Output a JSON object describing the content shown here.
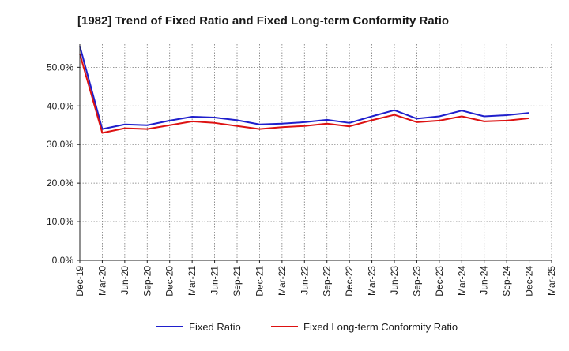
{
  "chart_data": {
    "type": "line",
    "title": "[1982]  Trend of Fixed Ratio and Fixed Long-term Conformity Ratio",
    "xlabel": "",
    "ylabel": "",
    "x": [
      "Dec-19",
      "Mar-20",
      "Jun-20",
      "Sep-20",
      "Dec-20",
      "Mar-21",
      "Jun-21",
      "Sep-21",
      "Dec-21",
      "Mar-22",
      "Jun-22",
      "Sep-22",
      "Dec-22",
      "Mar-23",
      "Jun-23",
      "Sep-23",
      "Dec-23",
      "Mar-24",
      "Jun-24",
      "Sep-24",
      "Dec-24",
      "Mar-25"
    ],
    "y_ticks": [
      "0.0%",
      "10.0%",
      "20.0%",
      "30.0%",
      "40.0%",
      "50.0%"
    ],
    "y_tick_values": [
      0,
      10,
      20,
      30,
      40,
      50
    ],
    "ylim": [
      0,
      56
    ],
    "grid": true,
    "legend_position": "bottom",
    "series": [
      {
        "name": "Fixed Ratio",
        "color": "#1f1fcc",
        "values": [
          55.5,
          34.0,
          35.2,
          35.0,
          36.2,
          37.2,
          37.0,
          36.3,
          35.2,
          35.4,
          35.8,
          36.4,
          35.6,
          37.3,
          38.9,
          36.7,
          37.3,
          38.8,
          37.3,
          37.6,
          38.2,
          null
        ]
      },
      {
        "name": "Fixed Long-term Conformity Ratio",
        "color": "#dd1111",
        "values": [
          53.5,
          33.0,
          34.2,
          34.0,
          35.0,
          36.0,
          35.6,
          34.8,
          34.0,
          34.5,
          34.8,
          35.4,
          34.7,
          36.3,
          37.7,
          35.8,
          36.2,
          37.3,
          36.0,
          36.2,
          36.8,
          null
        ]
      }
    ]
  }
}
